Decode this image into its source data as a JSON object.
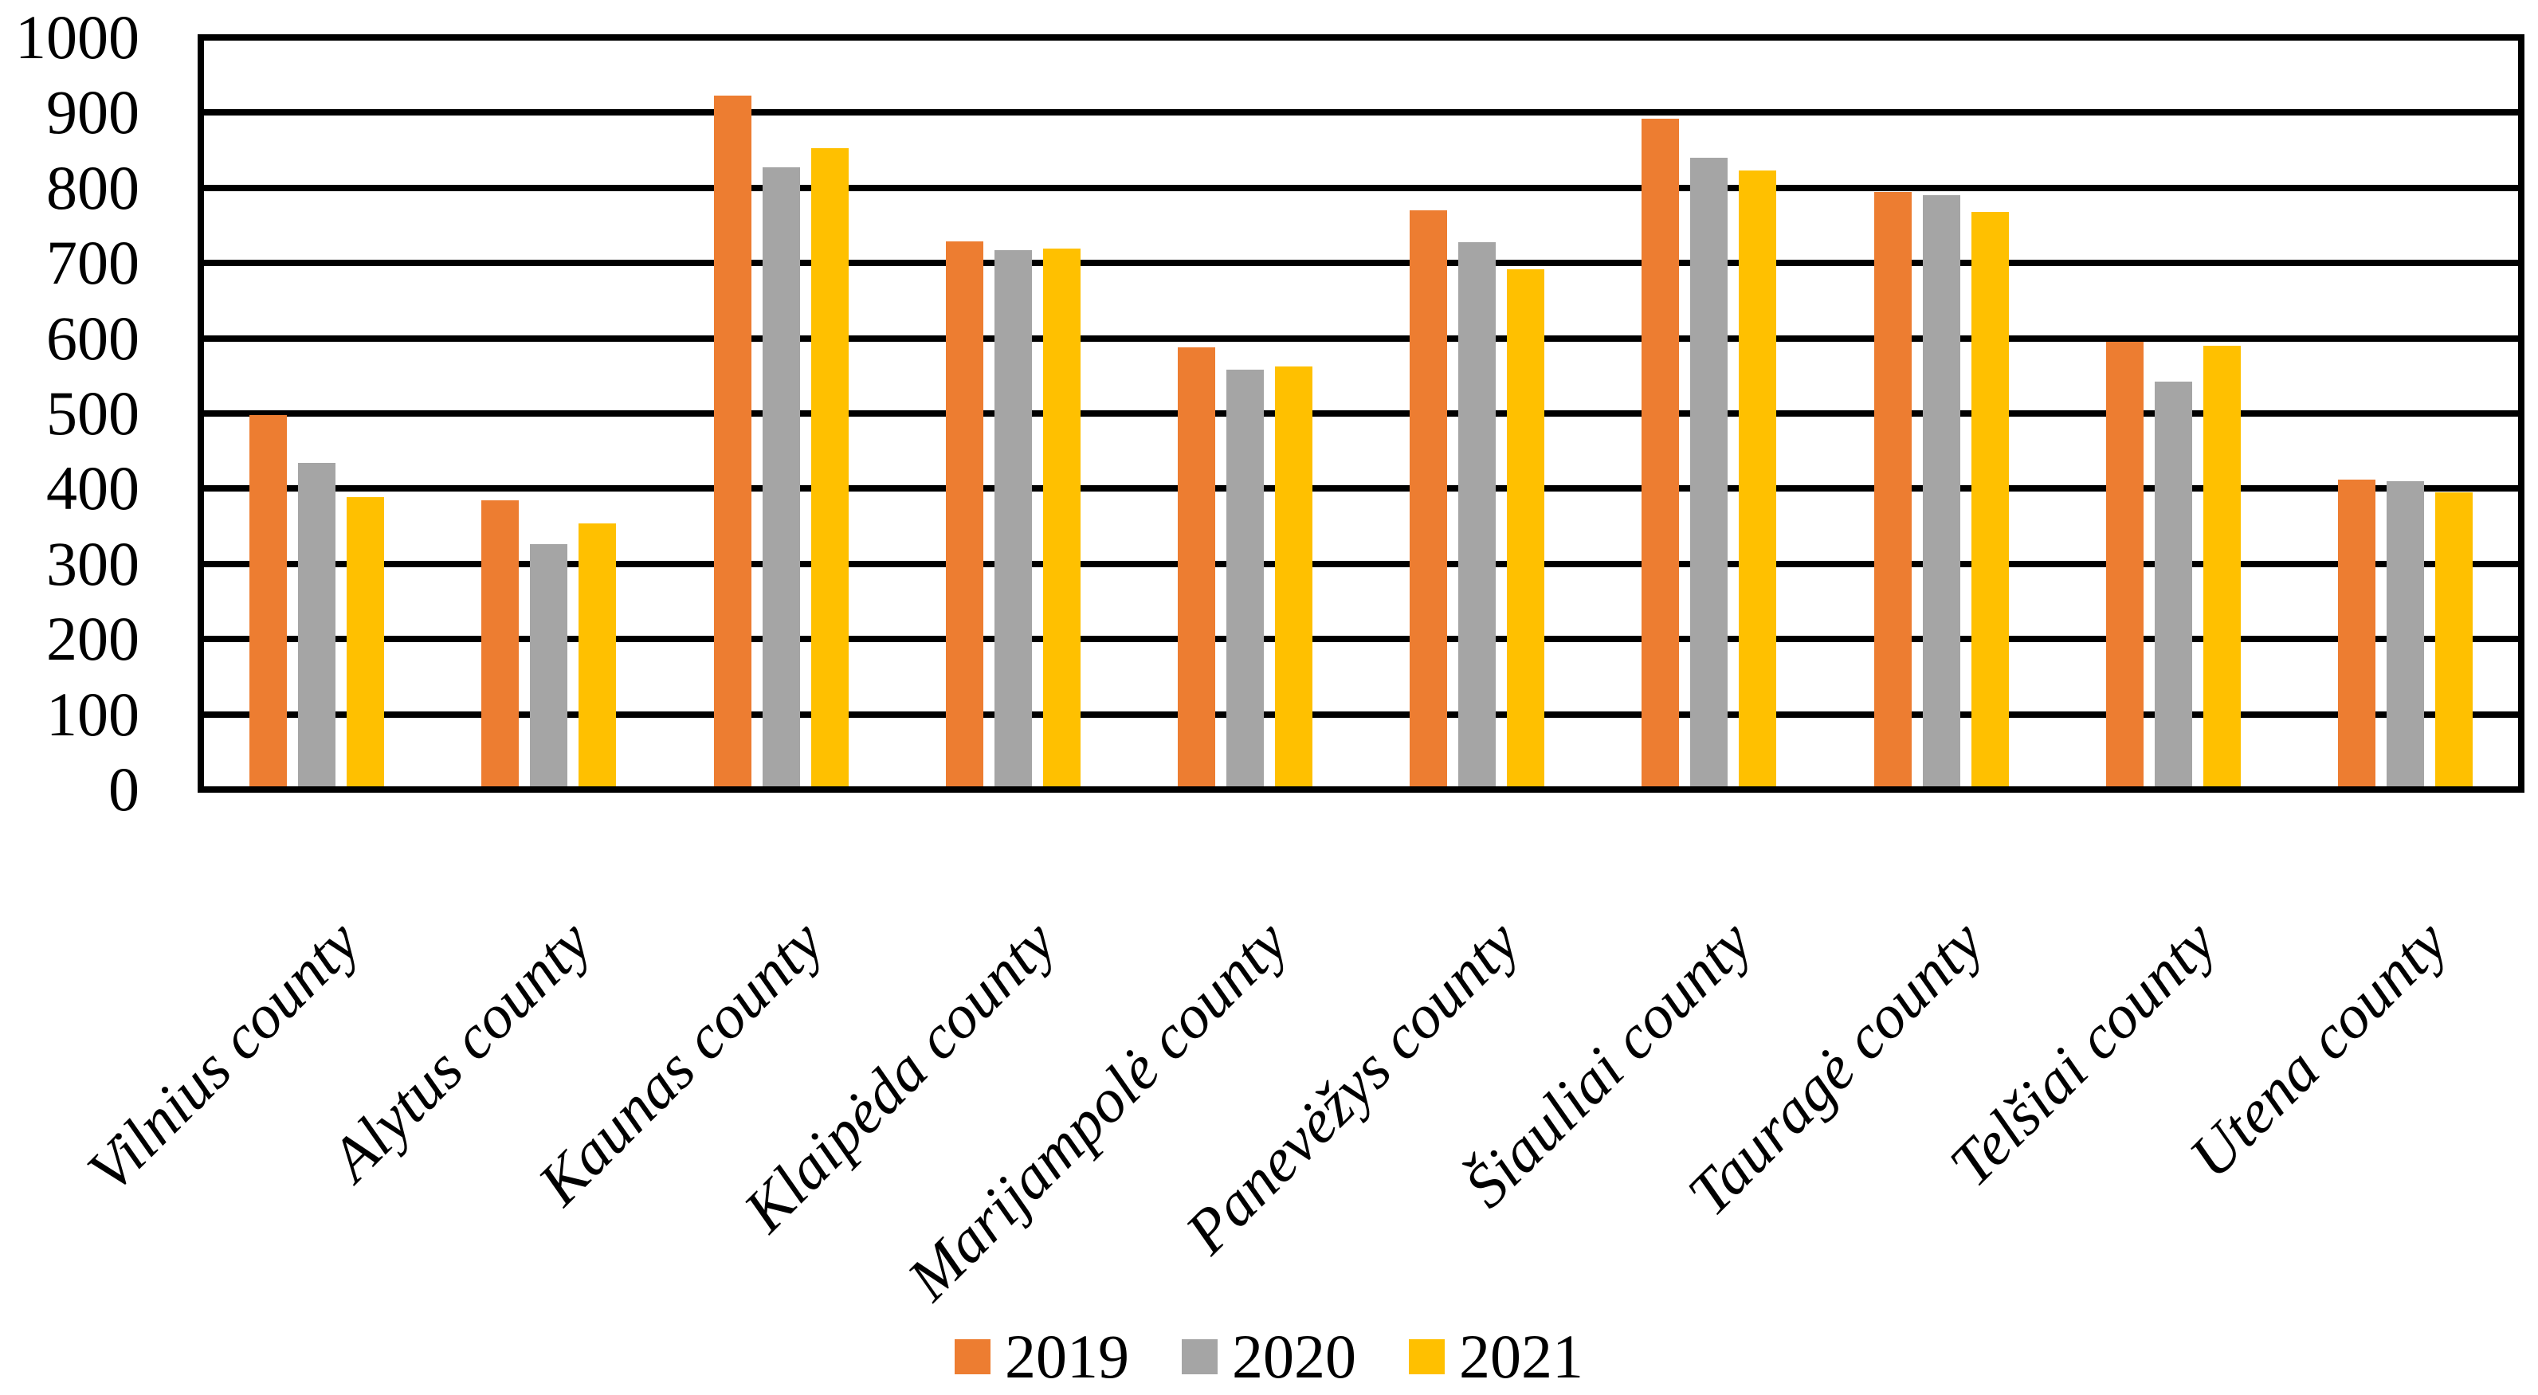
{
  "chart_data": {
    "type": "bar",
    "title": "",
    "xlabel": "",
    "ylabel": "",
    "categories": [
      "Vilnius county",
      "Alytus county",
      "Kaunas county",
      "Klaipėda county",
      "Marijampolė county",
      "Panevėžys county",
      "Šiauliai county",
      "Tauragė county",
      "Telšiai county",
      "Utena county"
    ],
    "series": [
      {
        "name": "2019",
        "color": "#ED7D31",
        "values": [
          494,
          380,
          918,
          725,
          584,
          766,
          888,
          790,
          591,
          408
        ]
      },
      {
        "name": "2020",
        "color": "#A5A5A5",
        "values": [
          430,
          322,
          823,
          713,
          554,
          723,
          836,
          786,
          538,
          406
        ]
      },
      {
        "name": "2021",
        "color": "#FFC000",
        "values": [
          385,
          350,
          849,
          715,
          558,
          688,
          819,
          764,
          586,
          391
        ]
      }
    ],
    "ylim": [
      0,
      1000
    ],
    "yticks": [
      0,
      100,
      200,
      300,
      400,
      500,
      600,
      700,
      800,
      900,
      1000
    ],
    "grid": true,
    "gridline_color": "#000000",
    "plot_border": true,
    "legend_position": "bottom",
    "legend_entries": [
      "2019",
      "2020",
      "2021"
    ],
    "background_color": "#FFFFFF"
  }
}
